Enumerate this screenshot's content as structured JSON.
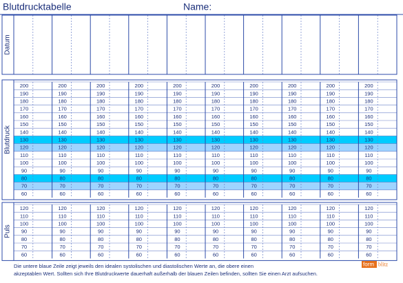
{
  "header": {
    "title": "Blutdrucktabelle",
    "name_label": "Name:"
  },
  "datum": {
    "label": "Datum"
  },
  "blutdruck": {
    "label": "Blutdruck",
    "values": [
      200,
      190,
      180,
      170,
      160,
      150,
      140,
      130,
      120,
      110,
      100,
      90,
      80,
      70,
      60
    ]
  },
  "puls": {
    "label": "Puls",
    "values": [
      120,
      110,
      100,
      90,
      80,
      70,
      60
    ]
  },
  "footer": [
    "Die untere blaue Zeile zeigt jeweils den idealen systolischen und diastolischen Werte an, die obere einen",
    "akzeptablen Wert. Sollten sich Ihre Blutdruckwerte dauerhaft außerhalb der blauen Zeilen befinden, sollten Sie einen Arzt aufsuchen."
  ],
  "logo": [
    "form",
    "blitz"
  ]
}
